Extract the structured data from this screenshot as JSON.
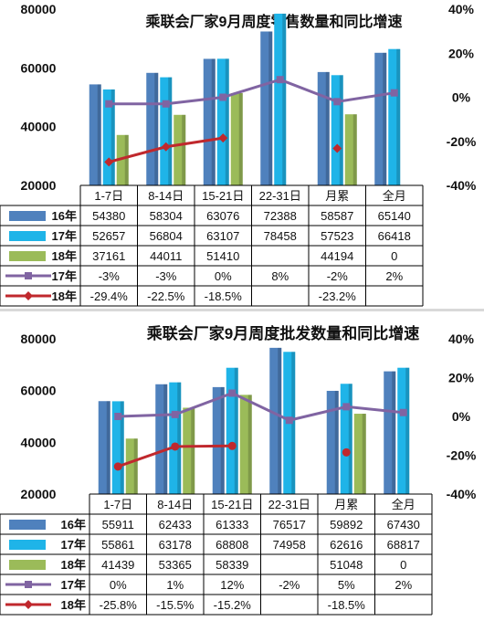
{
  "chart_data": [
    {
      "type": "bar",
      "title": "乘联会厂家9月周度零售数量和同比增速",
      "categories": [
        "1-7日",
        "8-14日",
        "15-21日",
        "22-31日",
        "月累",
        "全月"
      ],
      "ylim": [
        20000,
        80000
      ],
      "y_ticks": [
        "80000",
        "60000",
        "40000",
        "20000"
      ],
      "y2lim": [
        -40,
        40
      ],
      "y2_ticks": [
        "40%",
        "20%",
        "0%",
        "-20%",
        "-40%"
      ],
      "legend_placement": "data-table-left",
      "series": [
        {
          "name": "16年",
          "kind": "bar",
          "color": "#4f81bd",
          "values": [
            54380,
            58304,
            63076,
            72388,
            58587,
            65140
          ]
        },
        {
          "name": "17年",
          "kind": "bar",
          "color": "#1fb4e8",
          "values": [
            52657,
            56804,
            63107,
            78458,
            57523,
            66418
          ]
        },
        {
          "name": "18年",
          "kind": "bar",
          "color": "#9bbb59",
          "values": [
            37161,
            44011,
            51410,
            null,
            44194,
            0
          ]
        },
        {
          "name": "17年",
          "kind": "line",
          "color": "#8064a2",
          "values": [
            -3,
            -3,
            0,
            8,
            -2,
            2
          ]
        },
        {
          "name": "18年",
          "kind": "line",
          "color": "#c0282d",
          "values": [
            -29.4,
            -22.5,
            -18.5,
            null,
            -23.2,
            null
          ]
        }
      ],
      "table": [
        [
          "54380",
          "58304",
          "63076",
          "72388",
          "58587",
          "65140"
        ],
        [
          "52657",
          "56804",
          "63107",
          "78458",
          "57523",
          "66418"
        ],
        [
          "37161",
          "44011",
          "51410",
          "",
          "44194",
          "0"
        ],
        [
          "-3%",
          "-3%",
          "0%",
          "8%",
          "-2%",
          "2%"
        ],
        [
          "-29.4%",
          "-22.5%",
          "-18.5%",
          "",
          "-23.2%",
          ""
        ]
      ]
    },
    {
      "type": "bar",
      "title": "乘联会厂家9月周度批发数量和同比增速",
      "categories": [
        "1-7日",
        "8-14日",
        "15-21日",
        "22-31日",
        "月累",
        "全月"
      ],
      "ylim": [
        20000,
        80000
      ],
      "y_ticks": [
        "80000",
        "60000",
        "40000",
        "20000"
      ],
      "y2lim": [
        -40,
        40
      ],
      "y2_ticks": [
        "40%",
        "20%",
        "0%",
        "-20%",
        "-40%"
      ],
      "legend_placement": "data-table-left",
      "series": [
        {
          "name": "16年",
          "kind": "bar",
          "color": "#4f81bd",
          "values": [
            55911,
            62433,
            61333,
            76517,
            59892,
            67430
          ]
        },
        {
          "name": "17年",
          "kind": "bar",
          "color": "#1fb4e8",
          "values": [
            55861,
            63178,
            68808,
            74958,
            62616,
            68817
          ]
        },
        {
          "name": "18年",
          "kind": "bar",
          "color": "#9bbb59",
          "values": [
            41439,
            53365,
            58339,
            null,
            51048,
            0
          ]
        },
        {
          "name": "17年",
          "kind": "line",
          "color": "#8064a2",
          "values": [
            0,
            1,
            12,
            -2,
            5,
            2
          ]
        },
        {
          "name": "18年",
          "kind": "line",
          "color": "#c0282d",
          "values": [
            -25.8,
            -15.5,
            -15.2,
            null,
            -18.5,
            null
          ]
        }
      ],
      "table": [
        [
          "55911",
          "62433",
          "61333",
          "76517",
          "59892",
          "67430"
        ],
        [
          "55861",
          "63178",
          "68808",
          "74958",
          "62616",
          "68817"
        ],
        [
          "41439",
          "53365",
          "58339",
          "",
          "51048",
          "0"
        ],
        [
          "0%",
          "1%",
          "12%",
          "-2%",
          "5%",
          "2%"
        ],
        [
          "-25.8%",
          "-15.5%",
          "-15.2%",
          "",
          "-18.5%",
          ""
        ]
      ]
    }
  ]
}
